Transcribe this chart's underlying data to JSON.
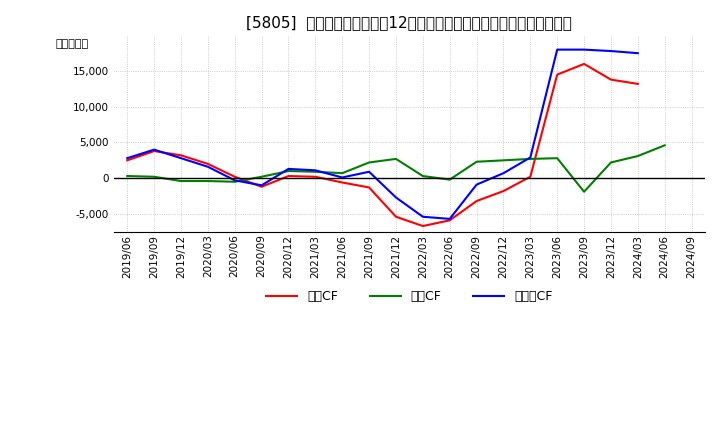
{
  "title": "[5805]  キャッシュフローの12か月移動合計の対前年同期増減額の推移",
  "ylabel": "（百万円）",
  "ylim": [
    -7500,
    20000
  ],
  "yticks": [
    -5000,
    0,
    5000,
    10000,
    15000
  ],
  "x_labels": [
    "2019/06",
    "2019/09",
    "2019/12",
    "2020/03",
    "2020/06",
    "2020/09",
    "2020/12",
    "2021/03",
    "2021/06",
    "2021/09",
    "2021/12",
    "2022/03",
    "2022/06",
    "2022/09",
    "2022/12",
    "2023/03",
    "2023/06",
    "2023/09",
    "2023/12",
    "2024/03",
    "2024/06",
    "2024/09"
  ],
  "operating_cf": [
    2500,
    3800,
    3200,
    2000,
    200,
    -1200,
    300,
    200,
    -600,
    -1300,
    -5400,
    -6700,
    -5900,
    -3200,
    -1800,
    200,
    14500,
    16000,
    13800,
    13200,
    null,
    null
  ],
  "investing_cf": [
    300,
    200,
    -400,
    -400,
    -500,
    200,
    1000,
    900,
    700,
    2200,
    2700,
    300,
    -200,
    2300,
    2500,
    2700,
    2800,
    -1900,
    2200,
    3100,
    4600,
    null
  ],
  "free_cf": [
    2800,
    4000,
    2800,
    1600,
    -300,
    -1000,
    1300,
    1100,
    100,
    900,
    -2700,
    -5400,
    -5700,
    -900,
    700,
    2900,
    18000,
    18000,
    17800,
    17500,
    null,
    null
  ],
  "colors": {
    "operating": "#ff0000",
    "investing": "#008000",
    "free": "#0000ff"
  },
  "legend_labels": [
    "営業CF",
    "投資CF",
    "フリーCF"
  ],
  "background_color": "#ffffff",
  "grid_color": "#b0b0b0",
  "title_fontsize": 11,
  "axis_fontsize": 7.5,
  "ylabel_fontsize": 8
}
